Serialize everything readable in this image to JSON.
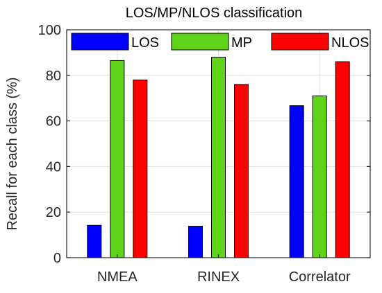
{
  "chart_data": {
    "type": "bar",
    "title": "LOS/MP/NLOS classification",
    "xlabel": "",
    "ylabel": "Recall for each class (%)",
    "categories": [
      "NMEA",
      "RINEX",
      "Correlator"
    ],
    "series": [
      {
        "name": "LOS",
        "color": "#0000ff",
        "values": [
          14.2,
          13.8,
          66.7
        ]
      },
      {
        "name": "MP",
        "color": "#5fd41b",
        "values": [
          86.5,
          88.0,
          71.0
        ]
      },
      {
        "name": "NLOS",
        "color": "#ff0000",
        "values": [
          78.0,
          76.0,
          86.0
        ]
      }
    ],
    "ylim": [
      0,
      100
    ],
    "yticks": [
      0,
      20,
      40,
      60,
      80,
      100
    ],
    "grid": true,
    "legend_placement": "top",
    "colors": {
      "axes": "#262626",
      "grid": "#dfdfdf",
      "bar_edge": "#000000"
    }
  }
}
